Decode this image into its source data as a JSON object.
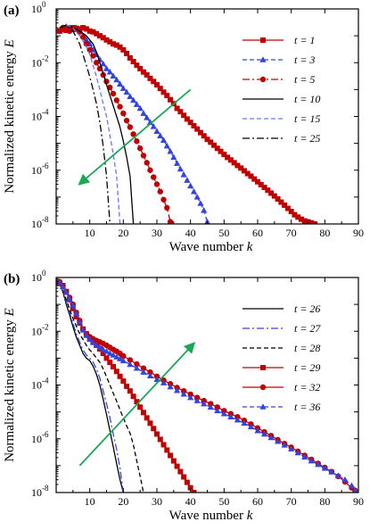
{
  "chart_data": [
    {
      "type": "line",
      "panel_label": "(a)",
      "xlabel": "Wave number",
      "xlabel_symbol": "k",
      "ylabel": "Normalized kinetic energy",
      "ylabel_symbol": "E",
      "xlim": [
        0,
        90
      ],
      "ylim_exp": [
        -8,
        0
      ],
      "y_scale": "log",
      "x_ticks": [
        10,
        20,
        30,
        40,
        50,
        60,
        70,
        80,
        90
      ],
      "y_tick_exps": [
        0,
        -2,
        -4,
        -6,
        -8
      ],
      "legend_position": "top-right",
      "arrow": {
        "from": [
          40,
          0.001
        ],
        "to": [
          7,
          3.1e-07
        ]
      },
      "series": [
        {
          "name": "t = 1",
          "color": "#c00000",
          "dash": "solid",
          "marker": "square",
          "x": [
            1,
            2,
            3,
            4,
            5,
            6,
            7,
            8,
            9,
            10,
            11,
            12,
            13,
            14,
            15,
            16,
            17,
            18,
            19,
            20,
            21,
            22,
            23,
            24,
            25,
            26,
            27,
            28,
            29,
            30,
            31,
            32,
            33,
            34,
            35,
            36,
            37,
            38,
            39,
            40,
            41,
            42,
            43,
            44,
            45,
            46,
            47,
            48,
            49,
            50,
            51,
            52,
            53,
            54,
            55,
            56,
            57,
            58,
            59,
            60,
            61,
            62,
            63,
            64,
            65,
            66,
            67,
            68,
            69,
            70,
            71,
            72,
            73,
            74,
            75,
            76,
            77
          ],
          "y": [
            0.15,
            0.17,
            0.16,
            0.18,
            0.2,
            0.19,
            0.18,
            0.2,
            0.18,
            0.15,
            0.14,
            0.12,
            0.1,
            0.085,
            0.07,
            0.06,
            0.05,
            0.045,
            0.038,
            0.03,
            0.022,
            0.015,
            0.011,
            0.008,
            0.006,
            0.0045,
            0.0035,
            0.0026,
            0.002,
            0.0015,
            0.0011,
            0.0008,
            0.0006,
            0.00042,
            0.0003,
            0.0002,
            0.00015,
            0.00011,
            8e-05,
            6e-05,
            4.5e-05,
            3.4e-05,
            2.5e-05,
            1.9e-05,
            1.4e-05,
            1.1e-05,
            8.5e-06,
            6.5e-06,
            5e-06,
            3.9e-06,
            3e-06,
            2.4e-06,
            1.9e-06,
            1.5e-06,
            1.2e-06,
            9.5e-07,
            7.5e-07,
            6e-07,
            4.7e-07,
            3.7e-07,
            2.9e-07,
            2.3e-07,
            1.8e-07,
            1.4e-07,
            1.1e-07,
            8.5e-08,
            6.5e-08,
            5e-08,
            3.8e-08,
            2.9e-08,
            2.2e-08,
            1.8e-08,
            1.5e-08,
            1.3e-08,
            1.2e-08,
            1.1e-08,
            1e-08
          ]
        },
        {
          "name": "t = 3",
          "color": "#3344dd",
          "dash": "dashed",
          "marker": "triangle",
          "x": [
            1,
            2,
            3,
            4,
            5,
            6,
            7,
            8,
            9,
            10,
            11,
            12,
            13,
            14,
            15,
            16,
            17,
            18,
            19,
            20,
            21,
            22,
            23,
            24,
            25,
            26,
            27,
            28,
            29,
            30,
            31,
            32,
            33,
            34,
            35,
            36,
            37,
            38,
            39,
            40,
            41,
            42,
            43,
            44,
            45
          ],
          "y": [
            0.15,
            0.2,
            0.22,
            0.2,
            0.17,
            0.2,
            0.15,
            0.1,
            0.07,
            0.05,
            0.03,
            0.02,
            0.013,
            0.009,
            0.006,
            0.0045,
            0.0032,
            0.0023,
            0.0016,
            0.0011,
            0.0008,
            0.00055,
            0.0004,
            0.00028,
            0.0002,
            0.00013,
            9e-05,
            6e-05,
            4.2e-05,
            2.8e-05,
            1.9e-05,
            1.3e-05,
            8e-06,
            5e-06,
            3e-06,
            1.8e-06,
            1.1e-06,
            6.8e-07,
            4.2e-07,
            2.6e-07,
            1.6e-07,
            1e-07,
            5.8e-08,
            3.2e-08,
            1.2e-08
          ]
        },
        {
          "name": "t = 5",
          "color": "#c00000",
          "dash": "dashdot",
          "marker": "circle",
          "x": [
            1,
            2,
            3,
            4,
            5,
            6,
            7,
            8,
            9,
            10,
            11,
            12,
            13,
            14,
            15,
            16,
            17,
            18,
            19,
            20,
            21,
            22,
            23,
            24,
            25,
            26,
            27,
            28,
            29,
            30,
            31,
            32,
            33,
            34
          ],
          "y": [
            0.15,
            0.2,
            0.18,
            0.15,
            0.2,
            0.18,
            0.14,
            0.09,
            0.05,
            0.03,
            0.018,
            0.01,
            0.006,
            0.0035,
            0.002,
            0.0012,
            0.0007,
            0.0004,
            0.00023,
            0.00013,
            7e-05,
            4e-05,
            2.2e-05,
            1.2e-05,
            6.5e-06,
            3.5e-06,
            1.9e-06,
            1e-06,
            5.5e-07,
            3e-07,
            1.6e-07,
            8e-08,
            4e-08,
            1.2e-08
          ]
        },
        {
          "name": "t = 10",
          "color": "#000000",
          "dash": "solid",
          "marker": "none",
          "x": [
            1,
            3,
            5,
            7,
            9,
            10,
            11,
            12,
            13,
            14,
            15,
            16,
            17,
            18,
            19,
            20,
            21,
            22,
            23
          ],
          "y": [
            0.2,
            0.25,
            0.2,
            0.15,
            0.1,
            0.07,
            0.05,
            0.025,
            0.01,
            0.004,
            0.0015,
            0.0006,
            0.00025,
            0.0001,
            4e-05,
            1.2e-05,
            3e-06,
            6e-07,
            1e-08
          ]
        },
        {
          "name": "t = 15",
          "color": "#6677ee",
          "dash": "dashed",
          "marker": "none",
          "x": [
            1,
            3,
            5,
            7,
            9,
            10,
            11,
            12,
            13,
            14,
            15,
            16,
            17,
            18,
            19
          ],
          "y": [
            0.2,
            0.25,
            0.2,
            0.1,
            0.04,
            0.02,
            0.008,
            0.003,
            0.001,
            0.0003,
            0.0001,
            2e-05,
            4e-06,
            6e-07,
            1e-08
          ]
        },
        {
          "name": "t = 25",
          "color": "#000000",
          "dash": "dashdot",
          "marker": "none",
          "x": [
            1,
            3,
            5,
            7,
            8,
            9,
            10,
            11,
            12,
            13,
            14,
            15,
            16
          ],
          "y": [
            0.2,
            0.25,
            0.15,
            0.05,
            0.02,
            0.008,
            0.003,
            0.001,
            0.0003,
            6e-05,
            8e-06,
            6e-07,
            1e-08
          ]
        }
      ]
    },
    {
      "type": "line",
      "panel_label": "(b)",
      "xlabel": "Wave number",
      "xlabel_symbol": "k",
      "ylabel": "Normalized kinetic energy",
      "ylabel_symbol": "E",
      "xlim": [
        0,
        90
      ],
      "ylim_exp": [
        -8,
        0
      ],
      "y_scale": "log",
      "x_ticks": [
        10,
        20,
        30,
        40,
        50,
        60,
        70,
        80,
        90
      ],
      "y_tick_exps": [
        0,
        -2,
        -4,
        -6,
        -8
      ],
      "legend_position": "top-right",
      "arrow": {
        "from": [
          7,
          1e-07
        ],
        "to": [
          41,
          0.0035
        ]
      },
      "series": [
        {
          "name": "t = 26",
          "color": "#000000",
          "dash": "solid",
          "marker": "none",
          "x": [
            1,
            2,
            3,
            4,
            5,
            6,
            7,
            8,
            9,
            10,
            11,
            12,
            13,
            14,
            15,
            16,
            17,
            18,
            19,
            20
          ],
          "y": [
            0.6,
            0.3,
            0.1,
            0.04,
            0.015,
            0.006,
            0.003,
            0.0015,
            0.001,
            0.0008,
            0.0005,
            0.00025,
            0.0001,
            3e-05,
            8e-06,
            2e-06,
            5e-07,
            1.2e-07,
            3e-08,
            1e-08
          ]
        },
        {
          "name": "t = 27",
          "color": "#3344dd",
          "dash": "dashdotted",
          "marker": "none",
          "x": [
            1,
            2,
            3,
            4,
            5,
            6,
            7,
            8,
            9,
            10,
            11,
            12,
            13,
            14,
            15,
            16,
            17,
            18,
            19,
            20
          ],
          "y": [
            0.6,
            0.3,
            0.12,
            0.05,
            0.02,
            0.008,
            0.004,
            0.002,
            0.0013,
            0.001,
            0.0007,
            0.0004,
            0.00018,
            6e-05,
            2e-05,
            6e-06,
            1.5e-06,
            4e-07,
            8e-08,
            1e-08
          ]
        },
        {
          "name": "t = 28",
          "color": "#000000",
          "dash": "dashed",
          "marker": "none",
          "x": [
            1,
            3,
            5,
            7,
            9,
            10,
            11,
            12,
            13,
            14,
            15,
            16,
            17,
            18,
            19,
            20,
            21,
            22,
            23,
            24,
            25,
            26
          ],
          "y": [
            0.6,
            0.15,
            0.03,
            0.008,
            0.003,
            0.002,
            0.0015,
            0.001,
            0.0007,
            0.0004,
            0.0002,
            0.0001,
            5e-05,
            2.5e-05,
            1.2e-05,
            6e-06,
            3e-06,
            1.6e-06,
            6e-07,
            1.5e-07,
            4e-08,
            1e-08
          ]
        },
        {
          "name": "t = 29",
          "color": "#c00000",
          "dash": "solid",
          "marker": "square",
          "x": [
            1,
            2,
            3,
            4,
            5,
            6,
            7,
            8,
            9,
            10,
            11,
            12,
            13,
            14,
            15,
            16,
            17,
            18,
            19,
            20,
            21,
            22,
            23,
            24,
            25,
            26,
            27,
            28,
            29,
            30,
            31,
            32,
            33,
            34,
            35,
            36,
            37,
            38,
            39,
            40,
            41
          ],
          "y": [
            0.6,
            0.5,
            0.3,
            0.15,
            0.07,
            0.035,
            0.02,
            0.012,
            0.008,
            0.0055,
            0.004,
            0.003,
            0.0022,
            0.0015,
            0.001,
            0.0007,
            0.00048,
            0.00032,
            0.00021,
            0.00014,
            9e-05,
            6e-05,
            3.8e-05,
            2.4e-05,
            1.5e-05,
            9.5e-06,
            6e-06,
            3.8e-06,
            2.4e-06,
            1.5e-06,
            9.5e-07,
            6e-07,
            3.8e-07,
            2.4e-07,
            1.5e-07,
            9.5e-08,
            6e-08,
            3.8e-08,
            2.4e-08,
            1.5e-08,
            1e-08
          ]
        },
        {
          "name": "t = 32",
          "color": "#c00000",
          "dash": "solid",
          "marker": "circle",
          "x": [
            1,
            2,
            3,
            4,
            5,
            6,
            7,
            8,
            9,
            10,
            11,
            12,
            13,
            14,
            15,
            16,
            17,
            18,
            19,
            20,
            22,
            24,
            26,
            28,
            30,
            32,
            34,
            36,
            38,
            40,
            42,
            44,
            46,
            48,
            50,
            52,
            54,
            56,
            58,
            60,
            62,
            64,
            66,
            68,
            70,
            72,
            74,
            76,
            78,
            80,
            82,
            84,
            86,
            88,
            89
          ],
          "y": [
            0.7,
            0.5,
            0.3,
            0.18,
            0.1,
            0.05,
            0.025,
            0.012,
            0.008,
            0.0062,
            0.0052,
            0.0045,
            0.004,
            0.0035,
            0.003,
            0.0025,
            0.0021,
            0.0018,
            0.0015,
            0.0012,
            0.00085,
            0.0006,
            0.00042,
            0.0003,
            0.00021,
            0.00015,
            0.00011,
            8e-05,
            6e-05,
            4.5e-05,
            3.4e-05,
            2.6e-05,
            2e-05,
            1.5e-05,
            1.1e-05,
            8.5e-06,
            6.5e-06,
            4.8e-06,
            3.5e-06,
            2.5e-06,
            1.8e-06,
            1.3e-06,
            9.2e-07,
            6.6e-07,
            4.8e-07,
            3.4e-07,
            2.4e-07,
            1.7e-07,
            1.2e-07,
            8.5e-08,
            6e-08,
            4e-08,
            2.5e-08,
            1.5e-08,
            1.2e-08
          ]
        },
        {
          "name": "t = 36",
          "color": "#3344dd",
          "dash": "dashed",
          "marker": "triangle",
          "x": [
            1,
            2,
            3,
            4,
            5,
            6,
            7,
            8,
            9,
            10,
            11,
            12,
            13,
            14,
            15,
            16,
            17,
            18,
            19,
            20,
            22,
            24,
            26,
            28,
            30,
            32,
            34,
            36,
            38,
            40,
            42,
            44,
            46,
            48,
            50,
            52,
            54,
            56,
            58,
            60,
            62,
            64,
            66,
            68,
            70,
            72,
            74,
            76,
            78,
            80,
            82,
            84,
            86,
            88,
            89
          ],
          "y": [
            0.65,
            0.45,
            0.28,
            0.16,
            0.09,
            0.045,
            0.022,
            0.011,
            0.007,
            0.005,
            0.0038,
            0.003,
            0.0025,
            0.0021,
            0.0018,
            0.0015,
            0.0013,
            0.0011,
            0.00095,
            0.0008,
            0.00058,
            0.00042,
            0.0003,
            0.00022,
            0.00016,
            0.00012,
            8.5e-05,
            6.2e-05,
            4.6e-05,
            3.4e-05,
            2.6e-05,
            2e-05,
            1.5e-05,
            1.1e-05,
            8.5e-06,
            6.5e-06,
            5e-06,
            3.8e-06,
            2.8e-06,
            2e-06,
            1.5e-06,
            1.1e-06,
            8e-07,
            5.8e-07,
            4.2e-07,
            3e-07,
            2.1e-07,
            1.5e-07,
            1.1e-07,
            8e-08,
            5.8e-08,
            4.2e-08,
            3e-08,
            1.8e-08,
            1.2e-08
          ]
        }
      ]
    }
  ]
}
